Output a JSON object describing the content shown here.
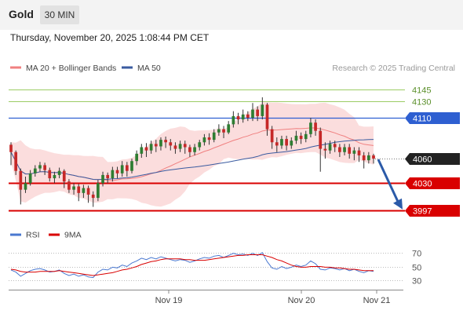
{
  "header": {
    "symbol": "Gold",
    "timeframe": "30 MIN",
    "datetime": "Thursday, November 20, 2025 1:08:44 PM CET"
  },
  "legend": {
    "ma20_bb": "MA 20 + Bollinger Bands",
    "ma50": "MA 50",
    "rsi": "RSI",
    "rsi_ma": "9MA"
  },
  "credit": "Research © 2025 Trading Central",
  "colors": {
    "bull": "#2e7d32",
    "bear": "#c62828",
    "ma20": "#f08080",
    "ma50": "#3a5ba0",
    "bands": "#fbd9d9",
    "resistance": "#2e5fd1",
    "support": "#d90000",
    "pivot": "#222222",
    "target_line": "#9ccc65",
    "arrow": "#2b5aa8",
    "rsi": "#4a78d0",
    "rsi_ma": "#d90000"
  },
  "chart_data": [
    {
      "type": "candlestick",
      "ylim": [
        3990,
        4158
      ],
      "x_labels": [
        "Nov 19",
        "Nov 20",
        "Nov 21"
      ],
      "levels": [
        {
          "value": 4145,
          "label": "4145",
          "kind": "target"
        },
        {
          "value": 4130,
          "label": "4130",
          "kind": "target"
        },
        {
          "value": 4110,
          "label": "4110",
          "kind": "resistance"
        },
        {
          "value": 4060,
          "label": "4060",
          "kind": "pivot"
        },
        {
          "value": 4030,
          "label": "4030",
          "kind": "support"
        },
        {
          "value": 3997,
          "label": "3997",
          "kind": "support"
        }
      ],
      "projection": {
        "from": 4059,
        "to": 3997
      },
      "candles_approx": [
        [
          4077,
          4068,
          4080,
          4052
        ],
        [
          4068,
          4045,
          4070,
          4040
        ],
        [
          4045,
          4022,
          4048,
          4004
        ],
        [
          4022,
          4030,
          4038,
          4018
        ],
        [
          4030,
          4042,
          4046,
          4027
        ],
        [
          4042,
          4048,
          4052,
          4038
        ],
        [
          4048,
          4052,
          4056,
          4044
        ],
        [
          4052,
          4046,
          4055,
          4040
        ],
        [
          4046,
          4036,
          4049,
          4032
        ],
        [
          4036,
          4040,
          4044,
          4030
        ],
        [
          4040,
          4045,
          4049,
          4036
        ],
        [
          4045,
          4032,
          4047,
          4024
        ],
        [
          4032,
          4022,
          4035,
          4018
        ],
        [
          4022,
          4026,
          4030,
          4016
        ],
        [
          4026,
          4018,
          4029,
          4008
        ],
        [
          4018,
          4024,
          4028,
          4012
        ],
        [
          4024,
          4016,
          4027,
          4006
        ],
        [
          4016,
          4012,
          4020,
          4001
        ],
        [
          4012,
          4030,
          4034,
          4008
        ],
        [
          4030,
          4040,
          4044,
          4026
        ],
        [
          4040,
          4036,
          4043,
          4030
        ],
        [
          4036,
          4046,
          4050,
          4032
        ],
        [
          4046,
          4042,
          4050,
          4036
        ],
        [
          4042,
          4052,
          4057,
          4038
        ],
        [
          4052,
          4045,
          4056,
          4038
        ],
        [
          4045,
          4057,
          4060,
          4042
        ],
        [
          4057,
          4066,
          4070,
          4052
        ],
        [
          4066,
          4074,
          4078,
          4061
        ],
        [
          4074,
          4070,
          4079,
          4062
        ],
        [
          4070,
          4078,
          4082,
          4066
        ],
        [
          4078,
          4075,
          4083,
          4068
        ],
        [
          4075,
          4083,
          4086,
          4070
        ],
        [
          4083,
          4080,
          4087,
          4073
        ],
        [
          4080,
          4076,
          4084,
          4070
        ],
        [
          4076,
          4072,
          4080,
          4066
        ],
        [
          4072,
          4078,
          4082,
          4068
        ],
        [
          4078,
          4074,
          4082,
          4066
        ],
        [
          4074,
          4068,
          4077,
          4062
        ],
        [
          4068,
          4074,
          4078,
          4064
        ],
        [
          4074,
          4080,
          4083,
          4070
        ],
        [
          4080,
          4086,
          4090,
          4076
        ],
        [
          4086,
          4083,
          4091,
          4077
        ],
        [
          4083,
          4092,
          4096,
          4080
        ],
        [
          4092,
          4096,
          4102,
          4088
        ],
        [
          4096,
          4092,
          4100,
          4085
        ],
        [
          4092,
          4102,
          4106,
          4090
        ],
        [
          4102,
          4112,
          4118,
          4098
        ],
        [
          4112,
          4108,
          4116,
          4102
        ],
        [
          4108,
          4114,
          4120,
          4104
        ],
        [
          4114,
          4110,
          4118,
          4106
        ],
        [
          4110,
          4120,
          4128,
          4106
        ],
        [
          4120,
          4112,
          4124,
          4106
        ],
        [
          4112,
          4126,
          4135,
          4108
        ],
        [
          4126,
          4096,
          4128,
          4088
        ],
        [
          4096,
          4080,
          4100,
          4072
        ],
        [
          4080,
          4076,
          4086,
          4068
        ],
        [
          4076,
          4084,
          4088,
          4072
        ],
        [
          4084,
          4076,
          4088,
          4070
        ],
        [
          4076,
          4082,
          4086,
          4072
        ],
        [
          4082,
          4088,
          4094,
          4078
        ],
        [
          4088,
          4084,
          4092,
          4078
        ],
        [
          4084,
          4090,
          4094,
          4080
        ],
        [
          4090,
          4104,
          4110,
          4086
        ],
        [
          4104,
          4094,
          4108,
          4088
        ],
        [
          4094,
          4072,
          4098,
          4044
        ],
        [
          4072,
          4070,
          4080,
          4060
        ],
        [
          4070,
          4078,
          4082,
          4066
        ],
        [
          4078,
          4074,
          4082,
          4068
        ],
        [
          4074,
          4068,
          4078,
          4062
        ],
        [
          4068,
          4074,
          4078,
          4064
        ],
        [
          4074,
          4066,
          4078,
          4060
        ],
        [
          4066,
          4070,
          4074,
          4058
        ],
        [
          4070,
          4064,
          4074,
          4056
        ],
        [
          4064,
          4058,
          4068,
          4048
        ],
        [
          4058,
          4064,
          4068,
          4054
        ],
        [
          4064,
          4060,
          4066,
          4054
        ]
      ]
    },
    {
      "type": "line",
      "name": "RSI",
      "ylim": [
        20,
        80
      ],
      "y_ticks": [
        70,
        50,
        30
      ],
      "series": [
        {
          "name": "RSI",
          "values": [
            45,
            42,
            36,
            40,
            44,
            46,
            47,
            45,
            42,
            43,
            45,
            40,
            37,
            39,
            36,
            38,
            35,
            34,
            42,
            46,
            45,
            49,
            48,
            52,
            50,
            55,
            58,
            62,
            60,
            63,
            61,
            64,
            62,
            60,
            58,
            60,
            59,
            56,
            58,
            61,
            63,
            62,
            65,
            66,
            63,
            66,
            69,
            67,
            68,
            66,
            69,
            66,
            70,
            57,
            48,
            46,
            50,
            47,
            49,
            52,
            50,
            52,
            58,
            54,
            46,
            45,
            48,
            47,
            45,
            47,
            44,
            46,
            43,
            41,
            44,
            43
          ]
        },
        {
          "name": "9MA",
          "values": [
            46,
            45,
            43,
            42,
            42,
            42,
            43,
            43,
            43,
            43,
            44,
            43,
            42,
            41,
            40,
            39,
            38,
            37,
            38,
            39,
            40,
            41,
            43,
            45,
            46,
            48,
            50,
            53,
            55,
            57,
            58,
            60,
            61,
            61,
            61,
            61,
            60,
            60,
            59,
            59,
            59,
            60,
            61,
            62,
            63,
            64,
            65,
            66,
            66,
            67,
            67,
            67,
            67,
            65,
            63,
            60,
            58,
            55,
            52,
            50,
            49,
            49,
            50,
            50,
            50,
            49,
            49,
            48,
            48,
            47,
            46,
            46,
            45,
            44,
            44,
            44
          ]
        }
      ]
    }
  ]
}
